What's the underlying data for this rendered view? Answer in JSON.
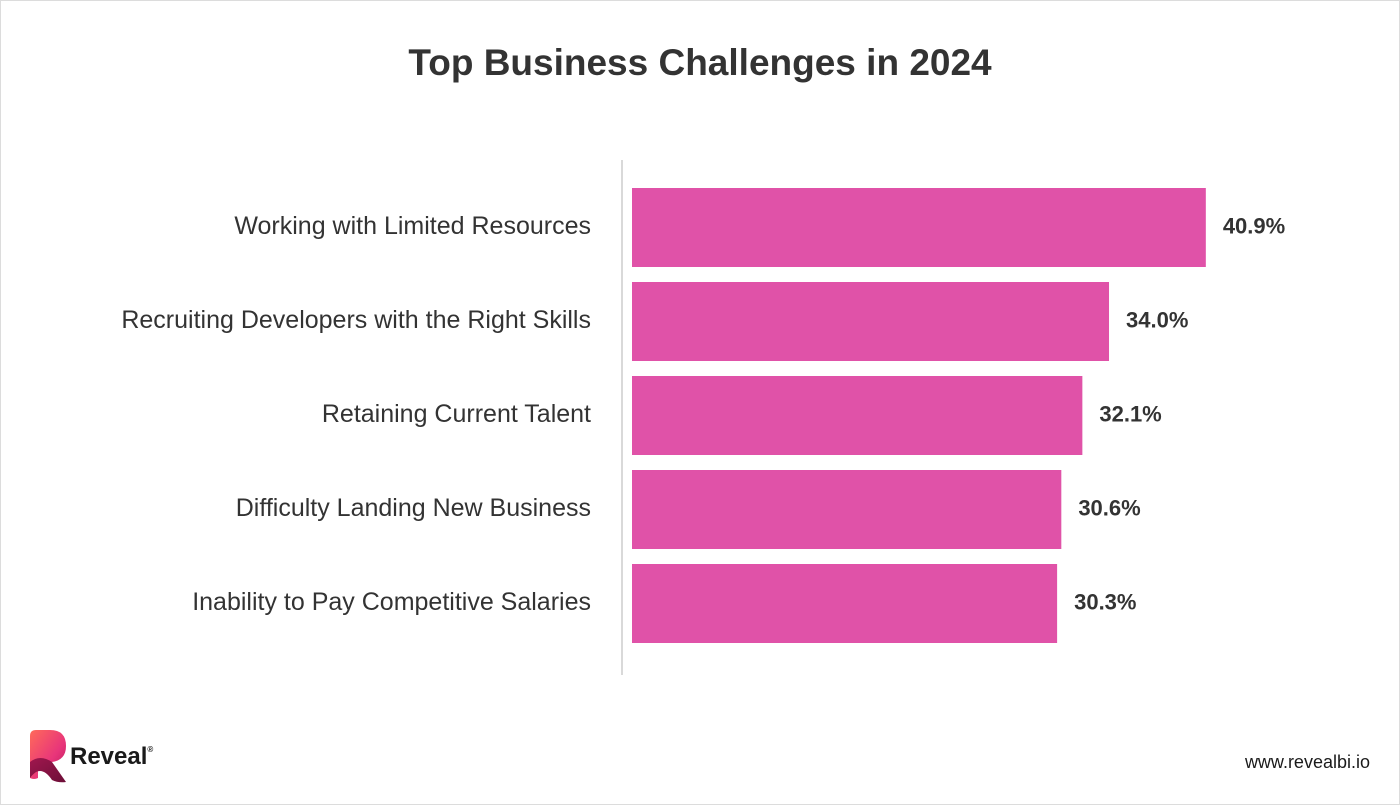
{
  "chart_data": {
    "type": "bar",
    "orientation": "horizontal",
    "title": "Top Business Challenges in 2024",
    "categories": [
      "Working with Limited Resources",
      "Recruiting Developers with the Right Skills",
      "Retaining Current Talent",
      "Difficulty Landing New Business",
      "Inability to Pay Competitive Salaries"
    ],
    "values": [
      40.9,
      34.0,
      32.1,
      30.6,
      30.3
    ],
    "value_labels": [
      "40.9%",
      "34.0%",
      "32.1%",
      "30.6%",
      "30.3%"
    ],
    "bar_color": "#e052a8",
    "grid": false,
    "legend": "none"
  },
  "branding": {
    "logo_text": "Reveal",
    "logo_mark": "®",
    "website": "www.revealbi.io"
  },
  "colors": {
    "bar": "#e052a8",
    "text": "#333333",
    "axis": "#d9d9d9"
  }
}
